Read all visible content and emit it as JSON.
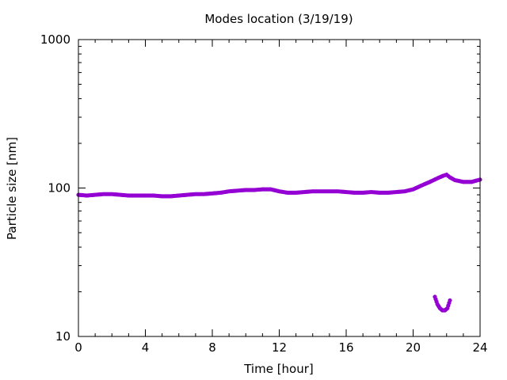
{
  "chart_data": {
    "type": "scatter",
    "title": "Modes location (3/19/19)",
    "xlabel": "Time [hour]",
    "ylabel": "Particle size [nm]",
    "xlim": [
      0,
      24
    ],
    "ylim": [
      10,
      1000
    ],
    "y_scale": "log",
    "grid": false,
    "legend": "none",
    "x_ticks": [
      0,
      4,
      8,
      12,
      16,
      20,
      24
    ],
    "x_tick_labels": [
      "0",
      "4",
      "8",
      "12",
      "16",
      "20",
      "24"
    ],
    "y_ticks": [
      10,
      100,
      1000
    ],
    "y_tick_labels": [
      "10",
      "100",
      "1000"
    ],
    "marker_color": "#9400d3",
    "series": [
      {
        "x": [
          0.0,
          0.5,
          1.0,
          1.5,
          2.0,
          2.5,
          3.0,
          3.5,
          4.0,
          4.5,
          5.0,
          5.5,
          6.0,
          6.5,
          7.0,
          7.5,
          8.0,
          8.5,
          9.0,
          9.5,
          10.0,
          10.5,
          11.0,
          11.5,
          12.0,
          12.5,
          13.0,
          13.5,
          14.0,
          14.5,
          15.0,
          15.5,
          16.0,
          16.5,
          17.0,
          17.5,
          18.0,
          18.5,
          19.0,
          19.5,
          20.0,
          20.5,
          21.0,
          21.5,
          21.8,
          22.0,
          22.2,
          22.5,
          23.0,
          23.5,
          24.0
        ],
        "y": [
          90,
          89,
          90,
          91,
          91,
          90,
          89,
          89,
          89,
          89,
          88,
          88,
          89,
          90,
          91,
          91,
          92,
          93,
          95,
          96,
          97,
          97,
          98,
          98,
          95,
          93,
          93,
          94,
          95,
          95,
          95,
          95,
          94,
          93,
          93,
          94,
          93,
          93,
          94,
          95,
          98,
          104,
          110,
          117,
          121,
          123,
          118,
          113,
          110,
          110,
          114
        ]
      },
      {
        "x": [
          21.3,
          21.45,
          21.6,
          21.75,
          21.9,
          22.05,
          22.2
        ],
        "y": [
          18.5,
          16.5,
          15.5,
          15.0,
          15.0,
          15.5,
          17.5
        ]
      }
    ]
  }
}
